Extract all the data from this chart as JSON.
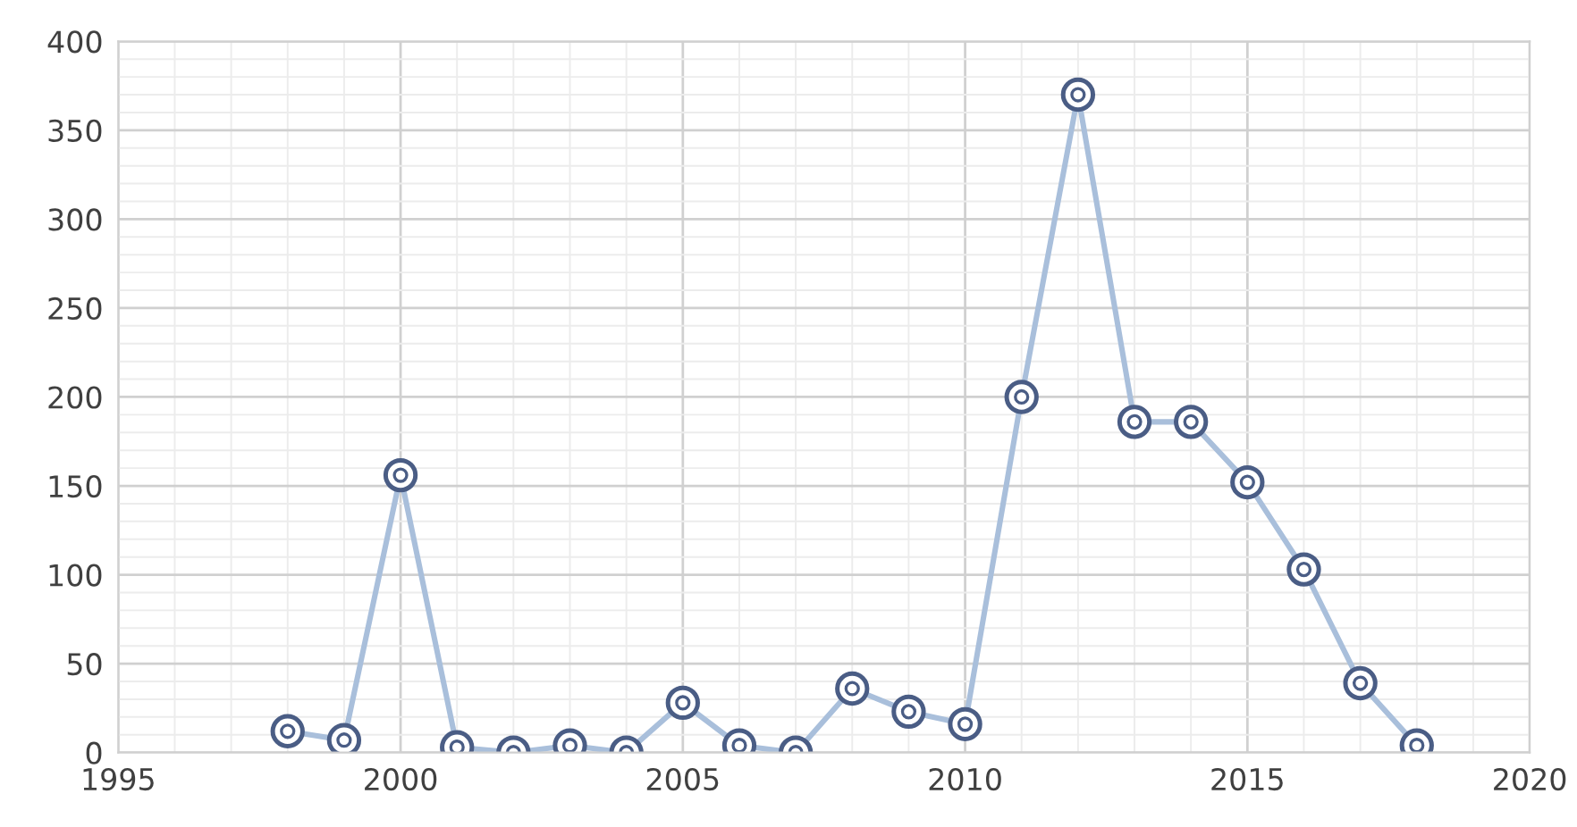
{
  "chart_data": {
    "type": "line",
    "x": [
      1998,
      1999,
      2000,
      2001,
      2002,
      2003,
      2004,
      2005,
      2006,
      2007,
      2008,
      2009,
      2010,
      2011,
      2012,
      2013,
      2014,
      2015,
      2016,
      2017,
      2018
    ],
    "series": [
      {
        "color": "#a9bfdb",
        "values": [
          12,
          7,
          156,
          3,
          0,
          4,
          0,
          28,
          4,
          0,
          36,
          23,
          16,
          200,
          370,
          186,
          186,
          152,
          103,
          39,
          4
        ]
      }
    ],
    "xlim": [
      1995,
      2020
    ],
    "xticks": [
      1995,
      2000,
      2005,
      2010,
      2015,
      2020
    ],
    "ylim": [
      0,
      400
    ],
    "yticks": [
      0,
      50,
      100,
      150,
      200,
      250,
      300,
      350,
      400
    ],
    "grid": true,
    "marker": "circle",
    "line_style": "solid"
  }
}
